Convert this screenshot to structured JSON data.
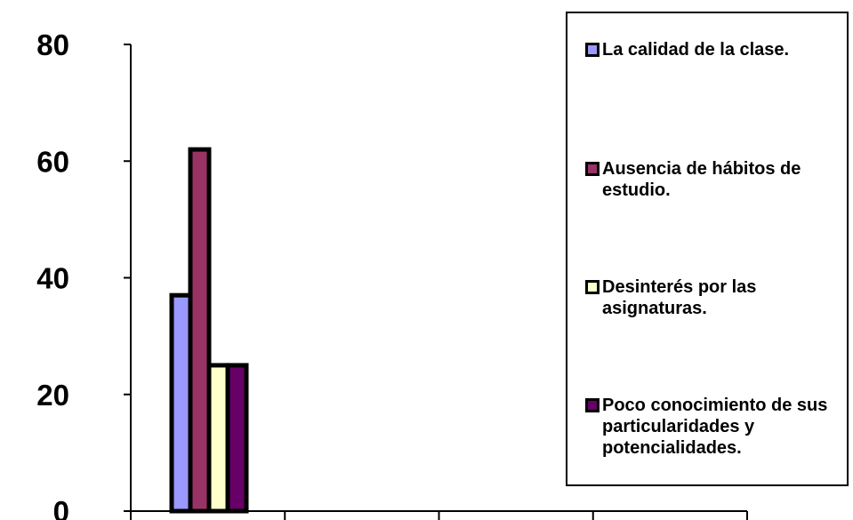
{
  "chart_data": {
    "type": "bar",
    "categories": [
      "",
      "",
      "",
      ""
    ],
    "series": [
      {
        "name": "La calidad de la clase.",
        "color": "#9999ff",
        "values": [
          37,
          null,
          null,
          null
        ]
      },
      {
        "name": "Ausencia de hábitos de estudio.",
        "color": "#993366",
        "values": [
          62,
          null,
          null,
          null
        ]
      },
      {
        "name": "Desinterés por las asignaturas.",
        "color": "#ffffcc",
        "values": [
          25,
          null,
          null,
          null
        ]
      },
      {
        "name": "Poco conocimiento de sus particularidades y potencialidades.",
        "color": "#660066",
        "values": [
          25,
          null,
          null,
          null
        ]
      }
    ],
    "ylim": [
      0,
      80
    ],
    "yticks": [
      "0",
      "20",
      "40",
      "60",
      "80"
    ],
    "grid": false,
    "legend_position": "right"
  }
}
